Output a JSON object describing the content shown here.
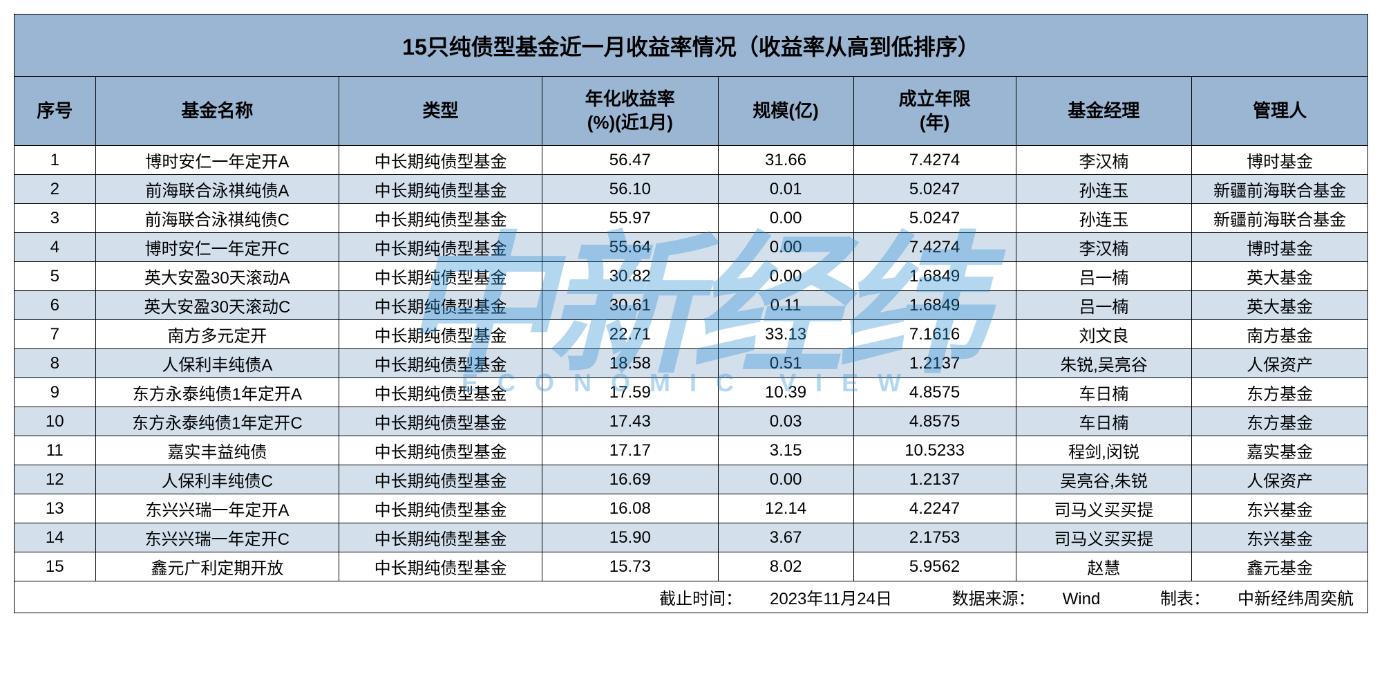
{
  "table": {
    "title": "15只纯债型基金近一月收益率情况（收益率从高到低排序）",
    "title_bg": "#9ab6d3",
    "header_bg": "#9ab6d3",
    "row_odd_bg": "#ffffff",
    "row_even_bg": "#d3e0ec",
    "border_color": "#000000",
    "title_fontsize": 32,
    "header_fontsize": 26,
    "cell_fontsize": 24,
    "columns": [
      {
        "key": "idx",
        "label": "序号",
        "width": "6%"
      },
      {
        "key": "name",
        "label": "基金名称",
        "width": "18%"
      },
      {
        "key": "type",
        "label": "类型",
        "width": "15%"
      },
      {
        "key": "yield",
        "label": "年化收益率\n(%)(近1月)",
        "width": "13%"
      },
      {
        "key": "scale",
        "label": "规模(亿)",
        "width": "10%"
      },
      {
        "key": "age",
        "label": "成立年限\n(年)",
        "width": "12%"
      },
      {
        "key": "manager",
        "label": "基金经理",
        "width": "13%"
      },
      {
        "key": "company",
        "label": "管理人",
        "width": "13%"
      }
    ],
    "rows": [
      {
        "idx": "1",
        "name": "博时安仁一年定开A",
        "type": "中长期纯债型基金",
        "yield": "56.47",
        "scale": "31.66",
        "age": "7.4274",
        "manager": "李汉楠",
        "company": "博时基金"
      },
      {
        "idx": "2",
        "name": "前海联合泳祺纯债A",
        "type": "中长期纯债型基金",
        "yield": "56.10",
        "scale": "0.01",
        "age": "5.0247",
        "manager": "孙连玉",
        "company": "新疆前海联合基金"
      },
      {
        "idx": "3",
        "name": "前海联合泳祺纯债C",
        "type": "中长期纯债型基金",
        "yield": "55.97",
        "scale": "0.00",
        "age": "5.0247",
        "manager": "孙连玉",
        "company": "新疆前海联合基金"
      },
      {
        "idx": "4",
        "name": "博时安仁一年定开C",
        "type": "中长期纯债型基金",
        "yield": "55.64",
        "scale": "0.00",
        "age": "7.4274",
        "manager": "李汉楠",
        "company": "博时基金"
      },
      {
        "idx": "5",
        "name": "英大安盈30天滚动A",
        "type": "中长期纯债型基金",
        "yield": "30.82",
        "scale": "0.00",
        "age": "1.6849",
        "manager": "吕一楠",
        "company": "英大基金"
      },
      {
        "idx": "6",
        "name": "英大安盈30天滚动C",
        "type": "中长期纯债型基金",
        "yield": "30.61",
        "scale": "0.11",
        "age": "1.6849",
        "manager": "吕一楠",
        "company": "英大基金"
      },
      {
        "idx": "7",
        "name": "南方多元定开",
        "type": "中长期纯债型基金",
        "yield": "22.71",
        "scale": "33.13",
        "age": "7.1616",
        "manager": "刘文良",
        "company": "南方基金"
      },
      {
        "idx": "8",
        "name": "人保利丰纯债A",
        "type": "中长期纯债型基金",
        "yield": "18.58",
        "scale": "0.51",
        "age": "1.2137",
        "manager": "朱锐,吴亮谷",
        "company": "人保资产"
      },
      {
        "idx": "9",
        "name": "东方永泰纯债1年定开A",
        "type": "中长期纯债型基金",
        "yield": "17.59",
        "scale": "10.39",
        "age": "4.8575",
        "manager": "车日楠",
        "company": "东方基金"
      },
      {
        "idx": "10",
        "name": "东方永泰纯债1年定开C",
        "type": "中长期纯债型基金",
        "yield": "17.43",
        "scale": "0.03",
        "age": "4.8575",
        "manager": "车日楠",
        "company": "东方基金"
      },
      {
        "idx": "11",
        "name": "嘉实丰益纯债",
        "type": "中长期纯债型基金",
        "yield": "17.17",
        "scale": "3.15",
        "age": "10.5233",
        "manager": "程剑,闵锐",
        "company": "嘉实基金"
      },
      {
        "idx": "12",
        "name": "人保利丰纯债C",
        "type": "中长期纯债型基金",
        "yield": "16.69",
        "scale": "0.00",
        "age": "1.2137",
        "manager": "吴亮谷,朱锐",
        "company": "人保资产"
      },
      {
        "idx": "13",
        "name": "东兴兴瑞一年定开A",
        "type": "中长期纯债型基金",
        "yield": "16.08",
        "scale": "12.14",
        "age": "4.2247",
        "manager": "司马义买买提",
        "company": "东兴基金"
      },
      {
        "idx": "14",
        "name": "东兴兴瑞一年定开C",
        "type": "中长期纯债型基金",
        "yield": "15.90",
        "scale": "3.67",
        "age": "2.1753",
        "manager": "司马义买买提",
        "company": "东兴基金"
      },
      {
        "idx": "15",
        "name": "鑫元广利定期开放",
        "type": "中长期纯债型基金",
        "yield": "15.73",
        "scale": "8.02",
        "age": "5.9562",
        "manager": "赵慧",
        "company": "鑫元基金"
      }
    ],
    "footer": {
      "cutoff_label": "截止时间：",
      "cutoff_value": "2023年11月24日",
      "source_label": "数据来源：",
      "source_value": "Wind",
      "credit_label": "制表：",
      "credit_value": "中新经纬周奕航"
    }
  },
  "watermark": {
    "main": "中新经纬",
    "sub": "ECONOMIC VIEW",
    "color": "#2c8fd6",
    "opacity": 0.35
  }
}
